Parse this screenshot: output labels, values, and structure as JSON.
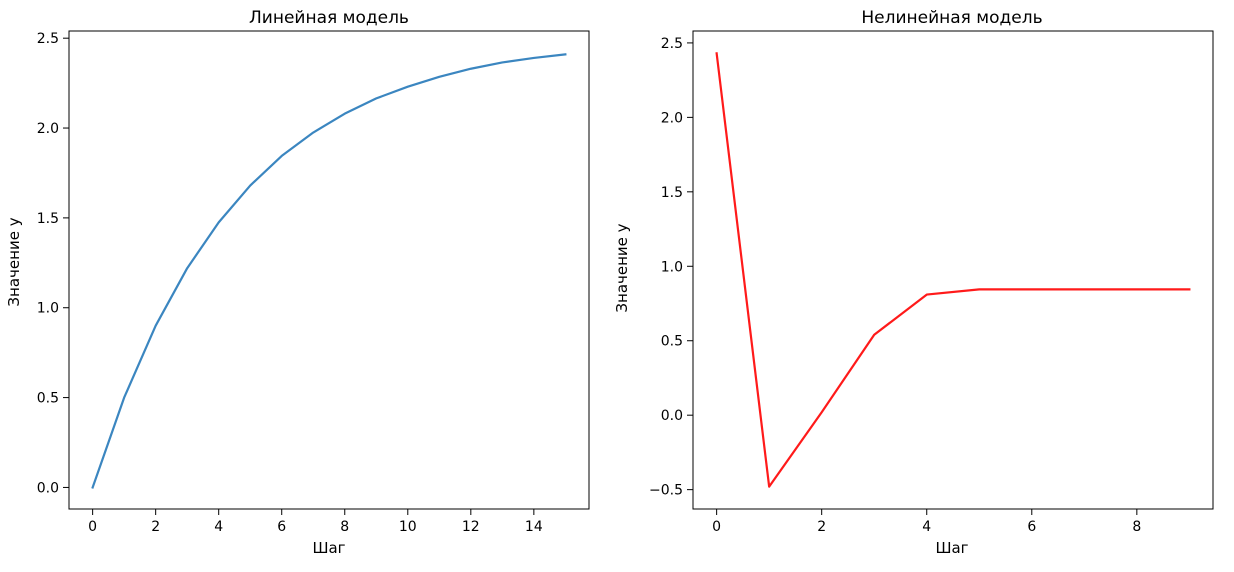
{
  "chart_data": [
    {
      "type": "line",
      "title": "Линейная модель",
      "xlabel": "Шаг",
      "ylabel": "Значение y",
      "xlim": [
        -0.75,
        15.75
      ],
      "ylim": [
        -0.12,
        2.54
      ],
      "xticks": [
        0,
        2,
        4,
        6,
        8,
        10,
        12,
        14
      ],
      "xtick_labels": [
        "0",
        "2",
        "4",
        "6",
        "8",
        "10",
        "12",
        "14"
      ],
      "yticks": [
        0.0,
        0.5,
        1.0,
        1.5,
        2.0,
        2.5
      ],
      "ytick_labels": [
        "0.0",
        "0.5",
        "1.0",
        "1.5",
        "2.0",
        "2.5"
      ],
      "grid": false,
      "color": "#3b86c0",
      "series": [
        {
          "x": [
            0,
            1,
            2,
            3,
            4,
            5,
            6,
            7,
            8,
            9,
            10,
            11,
            12,
            13,
            14,
            15
          ],
          "y": [
            0.0,
            0.5,
            0.9,
            1.22,
            1.475,
            1.68,
            1.845,
            1.975,
            2.08,
            2.165,
            2.23,
            2.285,
            2.33,
            2.365,
            2.39,
            2.41
          ]
        }
      ]
    },
    {
      "type": "line",
      "title": "Нелинейная модель",
      "xlabel": "Шаг",
      "ylabel": "Значение y",
      "xlim": [
        -0.45,
        9.45
      ],
      "ylim": [
        -0.63,
        2.58
      ],
      "xticks": [
        0,
        2,
        4,
        6,
        8
      ],
      "xtick_labels": [
        "0",
        "2",
        "4",
        "6",
        "8"
      ],
      "yticks": [
        -0.5,
        0.0,
        0.5,
        1.0,
        1.5,
        2.0,
        2.5
      ],
      "ytick_labels": [
        "−0.5",
        "0.0",
        "0.5",
        "1.0",
        "1.5",
        "2.0",
        "2.5"
      ],
      "grid": false,
      "color": "#ff1a1a",
      "series": [
        {
          "x": [
            0,
            1,
            2,
            3,
            4,
            5,
            6,
            7,
            8,
            9
          ],
          "y": [
            2.43,
            -0.48,
            0.02,
            0.54,
            0.81,
            0.845,
            0.845,
            0.845,
            0.845,
            0.845
          ]
        }
      ]
    }
  ]
}
